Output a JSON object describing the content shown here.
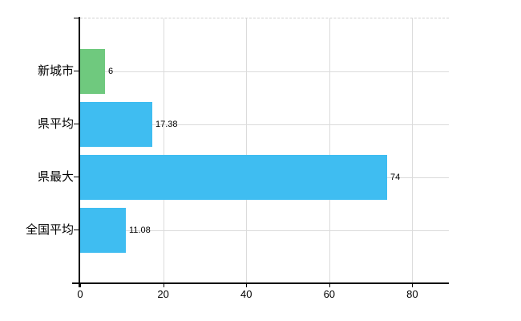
{
  "chart_data": {
    "type": "bar",
    "orientation": "horizontal",
    "title": "",
    "xlabel": "",
    "ylabel": "",
    "categories": [
      "新城市",
      "県平均",
      "県最大",
      "全国平均"
    ],
    "values": [
      6,
      17.38,
      74,
      11.08
    ],
    "value_labels": [
      "6",
      "17.38",
      "74",
      "11.08"
    ],
    "bar_colors": [
      "#6FC97E",
      "#3FBDF1",
      "#3FBDF1",
      "#3FBDF1"
    ],
    "xlim": [
      0,
      88.8
    ],
    "xticks": [
      0,
      20,
      40,
      60,
      80
    ],
    "xtick_labels": [
      "0",
      "20",
      "40",
      "60",
      "80"
    ],
    "grid": true,
    "legend_position": "none"
  },
  "style": {
    "background": "#FFFFFF",
    "axis_color": "#000000",
    "grid_color": "#DBDBDB",
    "frame_dash_color": "#CFCFCF",
    "text_color": "#000000"
  }
}
